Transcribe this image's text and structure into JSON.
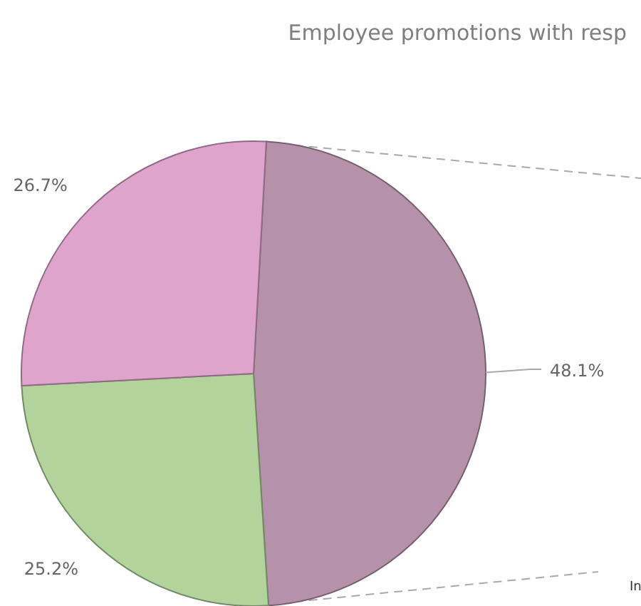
{
  "chart_data": {
    "type": "pie",
    "title": "Employee promotions with resp",
    "categories": [
      null,
      null,
      null
    ],
    "values": [
      48.1,
      25.2,
      26.7
    ],
    "colors": [
      "#b592a9",
      "#b2d49c",
      "#dea4cc"
    ],
    "value_labels": [
      "48.1%",
      "25.2%",
      "26.7%"
    ],
    "annotations": [
      "In"
    ]
  }
}
